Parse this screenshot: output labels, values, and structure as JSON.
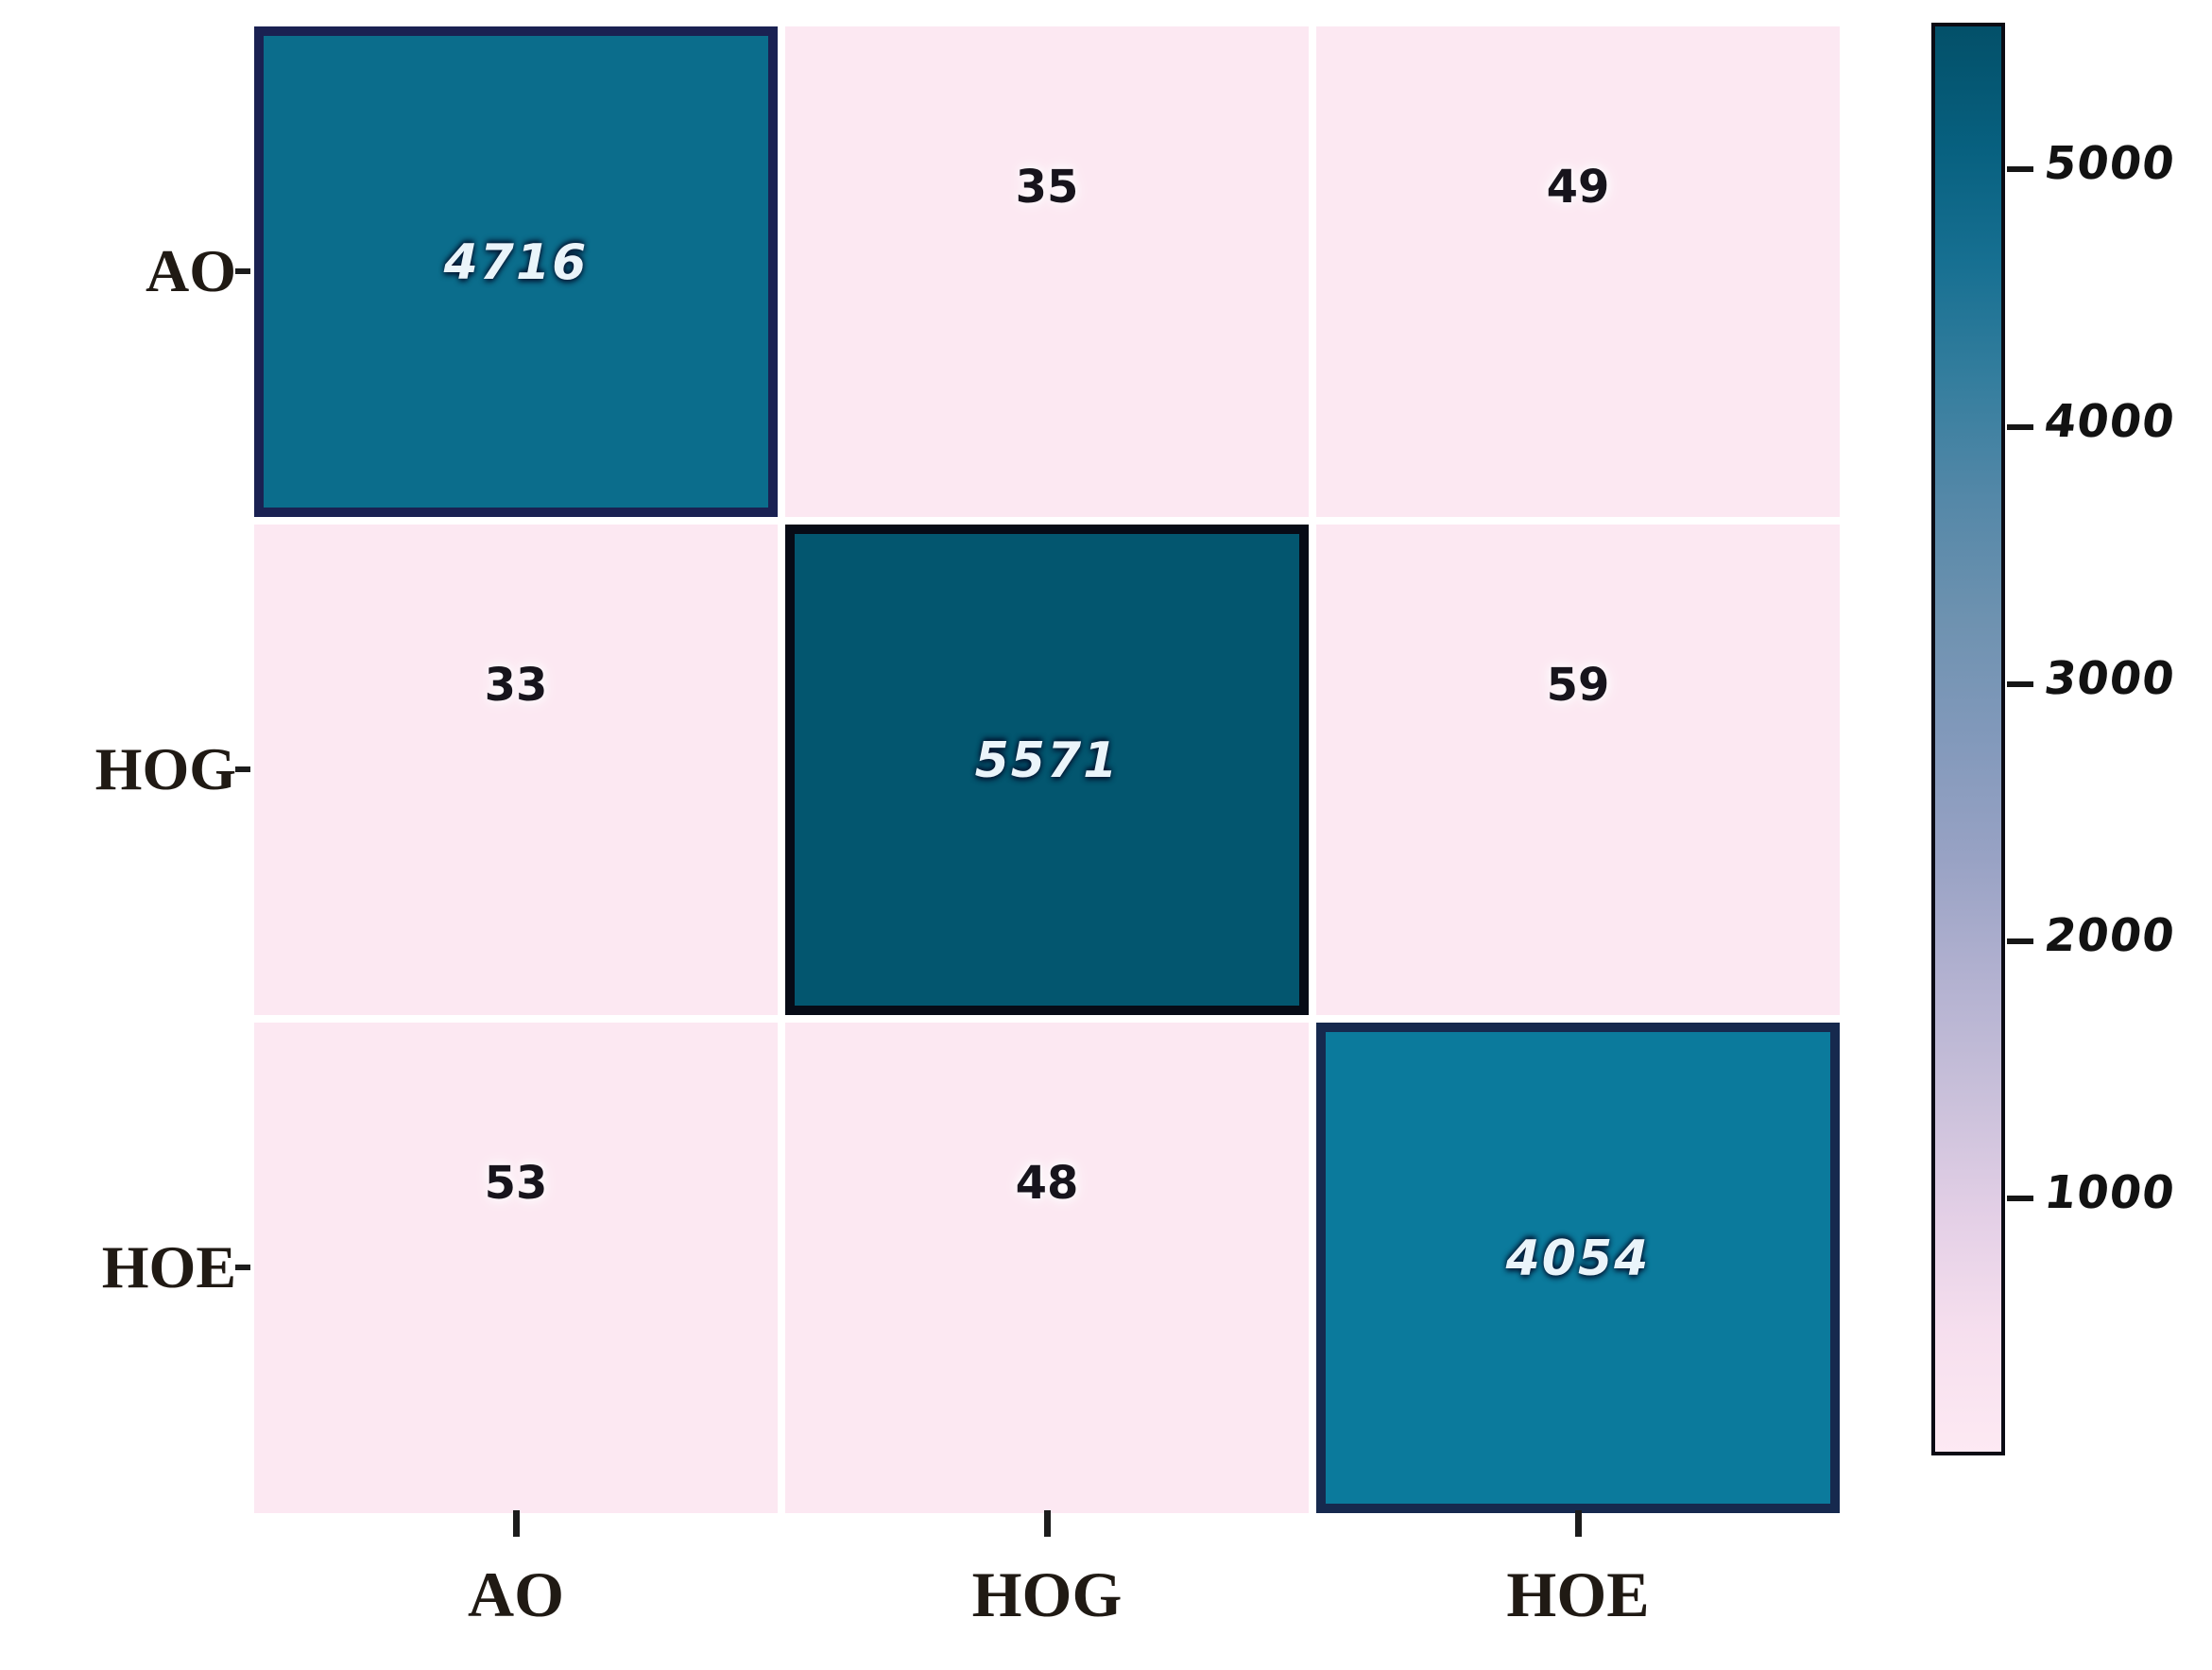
{
  "chart_data": {
    "type": "heatmap",
    "x_categories": [
      "AO",
      "HOG",
      "HOE"
    ],
    "y_categories": [
      "AO",
      "HOG",
      "HOE"
    ],
    "matrix": [
      [
        4716,
        35,
        49
      ],
      [
        33,
        5571,
        59
      ],
      [
        53,
        48,
        4054
      ]
    ],
    "cell_colors": [
      [
        "#0b6d8c",
        "#fce8f2",
        "#fce8f2"
      ],
      [
        "#fce8f2",
        "#03566f",
        "#fce8f2"
      ],
      [
        "#fce8f2",
        "#fce8f2",
        "#0b7a9c"
      ]
    ],
    "diagonal_border_colors": [
      "#1a2152",
      "#070b16",
      "#16294e"
    ],
    "diagonal_border_width": 10,
    "colorbar": {
      "ticks": [
        5000,
        4000,
        3000,
        2000,
        1000
      ],
      "vmin": 0,
      "vmax": 5571,
      "gradient_top_to_bottom": [
        "#035069",
        "#07607f",
        "#177092",
        "#357e9e",
        "#5588a8",
        "#6e92b0",
        "#8299bb",
        "#98a2c4",
        "#b2b1d0",
        "#c9c0da",
        "#e3cfe6",
        "#f6dfee",
        "#fde9f3"
      ],
      "position": "right"
    },
    "grid": false,
    "background": "#ffffff"
  }
}
